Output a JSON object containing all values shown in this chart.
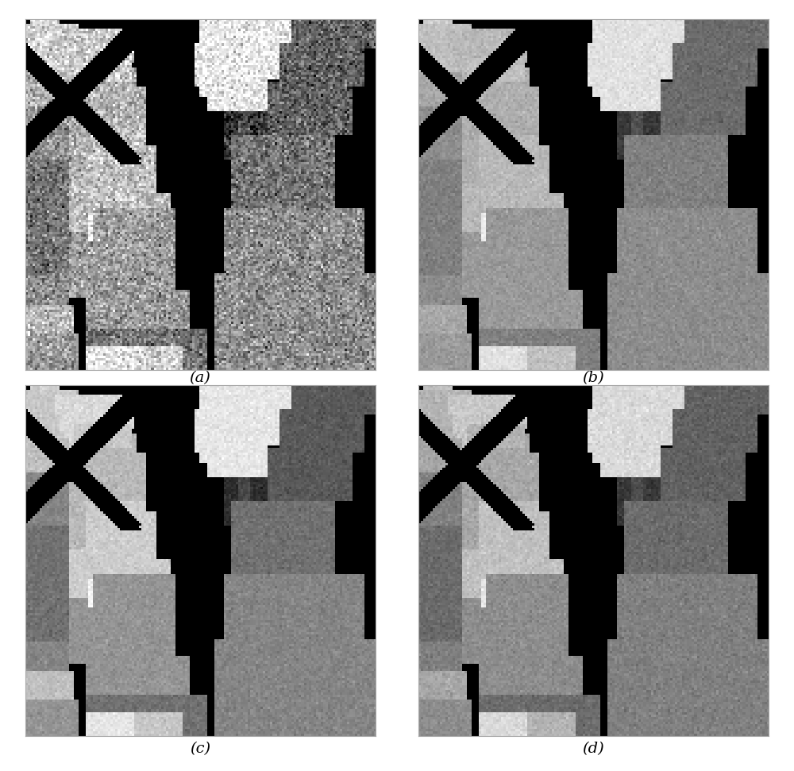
{
  "labels": [
    "(a)",
    "(b)",
    "(c)",
    "(d)"
  ],
  "fig_width": 10.0,
  "fig_height": 9.71,
  "background_color": "#ffffff",
  "label_fontsize": 14,
  "label_style": "italic"
}
